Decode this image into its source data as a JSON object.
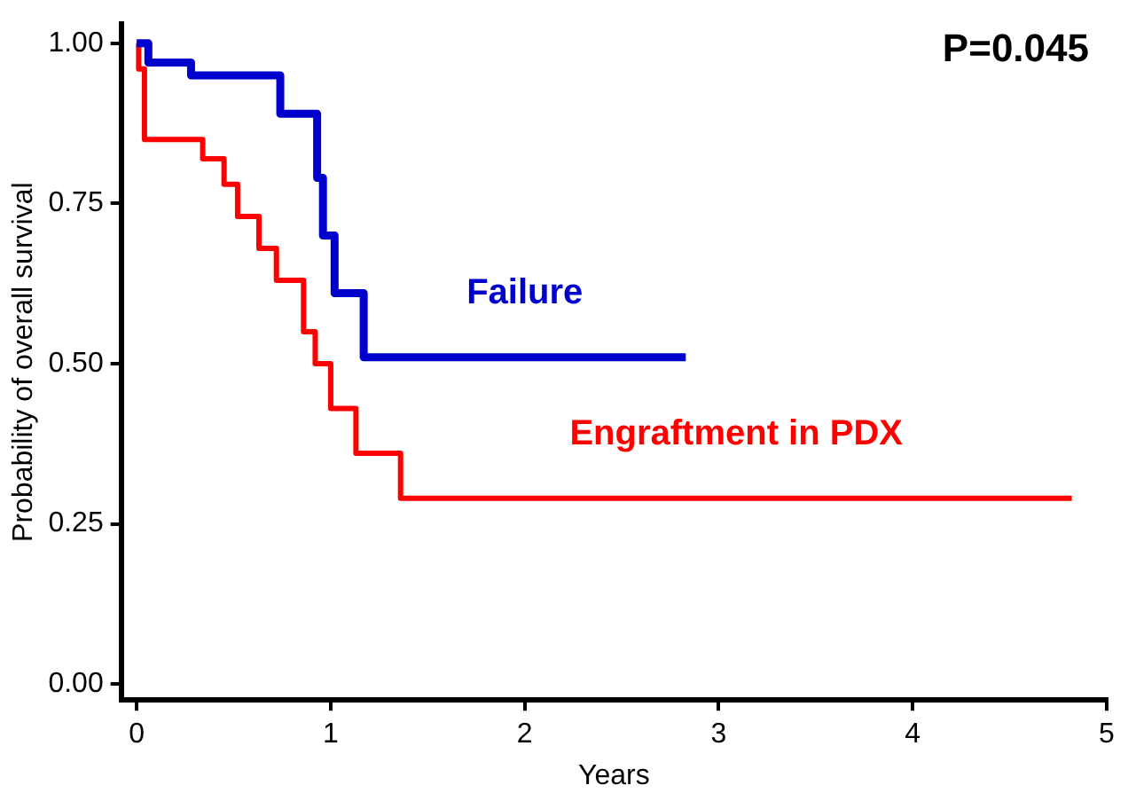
{
  "chart_data": {
    "type": "step",
    "xlabel": "Years",
    "ylabel": "Probability of overall survival",
    "annotations": [
      "P=0.045"
    ],
    "xlim": [
      -0.08,
      5
    ],
    "xticks": [
      0,
      1,
      2,
      3,
      4,
      5
    ],
    "ylim": [
      -0.025,
      1.03
    ],
    "yticks": [
      {
        "value": 0,
        "label": "0.00"
      },
      {
        "value": 0.25,
        "label": "0.25"
      },
      {
        "value": 0.5,
        "label": "0.50"
      },
      {
        "value": 0.75,
        "label": "0.75"
      },
      {
        "value": 1,
        "label": "1.00"
      }
    ],
    "grid": false,
    "legend": false,
    "marker": "none",
    "line_style": "solid",
    "series": [
      {
        "name": "Failure",
        "color": "#0000cc",
        "x": [
          0,
          0.06,
          0.28,
          0.74,
          0.93,
          0.96,
          1.02,
          1.17,
          2.83
        ],
        "values": [
          1,
          0.97,
          0.95,
          0.89,
          0.79,
          0.7,
          0.61,
          0.51,
          0.51
        ]
      },
      {
        "name": "Engraftment in PDX",
        "color": "#ff0000",
        "x": [
          0,
          0.01,
          0.04,
          0.34,
          0.45,
          0.52,
          0.63,
          0.72,
          0.86,
          0.92,
          1,
          1.13,
          1.36,
          4.82
        ],
        "values": [
          1,
          0.96,
          0.85,
          0.82,
          0.78,
          0.73,
          0.68,
          0.63,
          0.55,
          0.5,
          0.43,
          0.36,
          0.29,
          0.29
        ]
      }
    ]
  }
}
